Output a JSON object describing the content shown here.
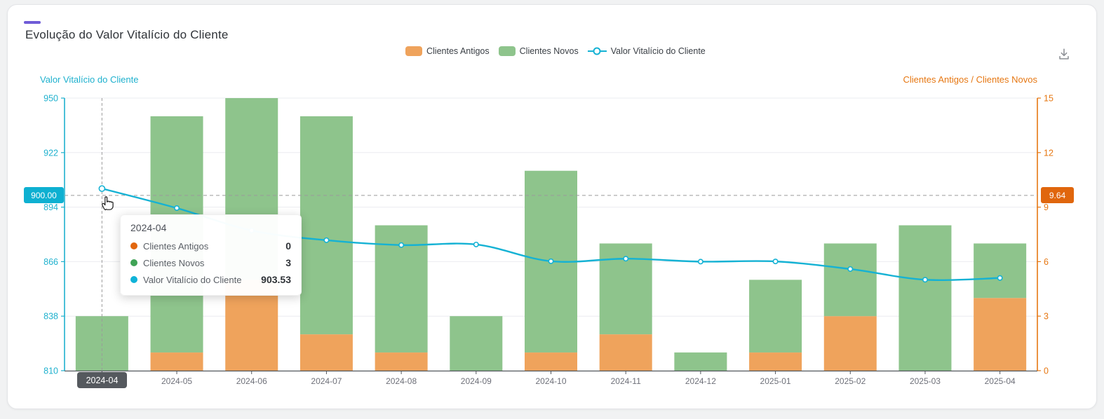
{
  "header": {
    "title": "Evolução do Valor Vitalício do Cliente"
  },
  "legend": {
    "items": [
      {
        "label": "Clientes Antigos",
        "type": "bar"
      },
      {
        "label": "Clientes Novos",
        "type": "bar"
      },
      {
        "label": "Valor Vitalício do Cliente",
        "type": "line"
      }
    ]
  },
  "axes": {
    "left_title": "Valor Vitalício do Cliente",
    "right_title": "Clientes Antigos / Clientes Novos"
  },
  "pointer": {
    "category": "2024-04",
    "left_label": "900.00",
    "right_label": "9.64",
    "left_value": 900.0
  },
  "tooltip": {
    "title": "2024-04",
    "rows": [
      {
        "label": "Clientes Antigos",
        "value": "0",
        "color": "#e2660e"
      },
      {
        "label": "Clientes Novos",
        "value": "3",
        "color": "#3fa356"
      },
      {
        "label": "Valor Vitalício do Cliente",
        "value": "903.53",
        "color": "#0fb3d8"
      }
    ]
  },
  "icons": {
    "download": "download-tray-arrow",
    "cursor": "hand-pointer"
  },
  "colors": {
    "accent": "#6f5bd7",
    "grid": "#ebecf0",
    "axis_dark": "#51565c",
    "text_gray": "#6e7079",
    "left_axis": "#1fb1ce",
    "right_axis": "#e67712",
    "left_badge_bg": "#0eb0d1",
    "right_badge_bg": "#e0660d",
    "x_badge_bg": "#55595e",
    "crosshair": "#9a9a9a"
  },
  "chart_data": {
    "type": "combo",
    "categories": [
      "2024-04",
      "2024-05",
      "2024-06",
      "2024-07",
      "2024-08",
      "2024-09",
      "2024-10",
      "2024-11",
      "2024-12",
      "2025-01",
      "2025-02",
      "2025-03",
      "2025-04"
    ],
    "series": [
      {
        "name": "Clientes Antigos",
        "type": "bar",
        "stack": true,
        "axis": "right",
        "color": "#efa35c",
        "values": [
          0,
          1,
          5,
          2,
          1,
          0,
          1,
          2,
          0,
          1,
          3,
          0,
          4
        ]
      },
      {
        "name": "Clientes Novos",
        "type": "bar",
        "stack": true,
        "axis": "right",
        "color": "#8ec48c",
        "values": [
          3,
          13,
          10,
          12,
          7,
          3,
          10,
          5,
          1,
          4,
          4,
          8,
          3
        ]
      },
      {
        "name": "Valor Vitalício do Cliente",
        "type": "line",
        "smooth": true,
        "axis": "left",
        "color": "#15b2d4",
        "values": [
          903.53,
          893.5,
          882.0,
          877.0,
          874.5,
          874.8,
          866.2,
          867.5,
          866.0,
          866.1,
          862.2,
          856.7,
          857.6
        ]
      }
    ],
    "left_axis": {
      "title": "Valor Vitalício do Cliente",
      "min": 810,
      "max": 950,
      "ticks": [
        950,
        922,
        894,
        866,
        838,
        810
      ]
    },
    "right_axis": {
      "title": "Clientes Antigos / Clientes Novos",
      "min": 0,
      "max": 15,
      "ticks": [
        15,
        12,
        9,
        6,
        3,
        0
      ]
    },
    "grid": true,
    "legend_position": "top",
    "highlighted_category": "2024-04"
  }
}
